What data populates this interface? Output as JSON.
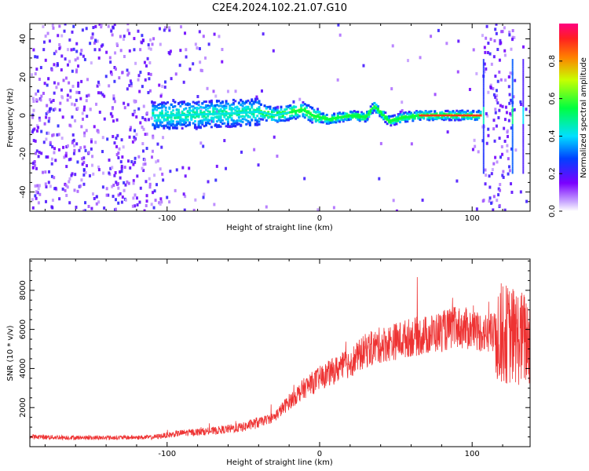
{
  "title": "C2E4.2024.102.21.07.G10",
  "chart_data": [
    {
      "type": "heatmap",
      "xlabel": "Height of straight line (km)",
      "ylabel": "Frequency (Hz)",
      "xlim": [
        -190,
        138
      ],
      "ylim": [
        -50,
        48
      ],
      "xticks": [
        -100,
        0,
        100
      ],
      "yticks": [
        -40,
        -20,
        0,
        20,
        40
      ],
      "colorbar": {
        "label": "Normalized spectral amplitude",
        "range": [
          0,
          1
        ],
        "ticks": [
          0.0,
          0.2,
          0.4,
          0.6,
          0.8
        ]
      },
      "ridge": [
        {
          "x": -100,
          "f": 0
        },
        {
          "x": -60,
          "f": 1
        },
        {
          "x": -40,
          "f": 2
        },
        {
          "x": -30,
          "f": 0
        },
        {
          "x": -12,
          "f": 3
        },
        {
          "x": -5,
          "f": 0
        },
        {
          "x": 5,
          "f": -2
        },
        {
          "x": 20,
          "f": 0
        },
        {
          "x": 30,
          "f": -1
        },
        {
          "x": 35,
          "f": 5
        },
        {
          "x": 45,
          "f": -3
        },
        {
          "x": 55,
          "f": -1
        },
        {
          "x": 65,
          "f": 0
        },
        {
          "x": 105,
          "f": 0
        }
      ]
    },
    {
      "type": "line",
      "xlabel": "Height of straight line (km)",
      "ylabel": "SNR (10 * v/v)",
      "xlim": [
        -190,
        138
      ],
      "ylim": [
        0,
        9600
      ],
      "xticks": [
        -100,
        0,
        100
      ],
      "yticks": [
        2000,
        4000,
        6000,
        8000
      ],
      "color": "#ee3333",
      "envelope": [
        {
          "x": -190,
          "y": 500
        },
        {
          "x": -150,
          "y": 450
        },
        {
          "x": -110,
          "y": 480
        },
        {
          "x": -90,
          "y": 700
        },
        {
          "x": -70,
          "y": 800
        },
        {
          "x": -50,
          "y": 1000
        },
        {
          "x": -30,
          "y": 1500
        },
        {
          "x": -20,
          "y": 2300
        },
        {
          "x": -10,
          "y": 3000
        },
        {
          "x": 0,
          "y": 3500
        },
        {
          "x": 10,
          "y": 3900
        },
        {
          "x": 20,
          "y": 4300
        },
        {
          "x": 30,
          "y": 4900
        },
        {
          "x": 40,
          "y": 5200
        },
        {
          "x": 50,
          "y": 5400
        },
        {
          "x": 60,
          "y": 5600
        },
        {
          "x": 70,
          "y": 5700
        },
        {
          "x": 80,
          "y": 5900
        },
        {
          "x": 90,
          "y": 6100
        },
        {
          "x": 100,
          "y": 6000
        },
        {
          "x": 110,
          "y": 5800
        },
        {
          "x": 120,
          "y": 5800
        },
        {
          "x": 130,
          "y": 5600
        },
        {
          "x": 138,
          "y": 5400
        }
      ]
    }
  ]
}
